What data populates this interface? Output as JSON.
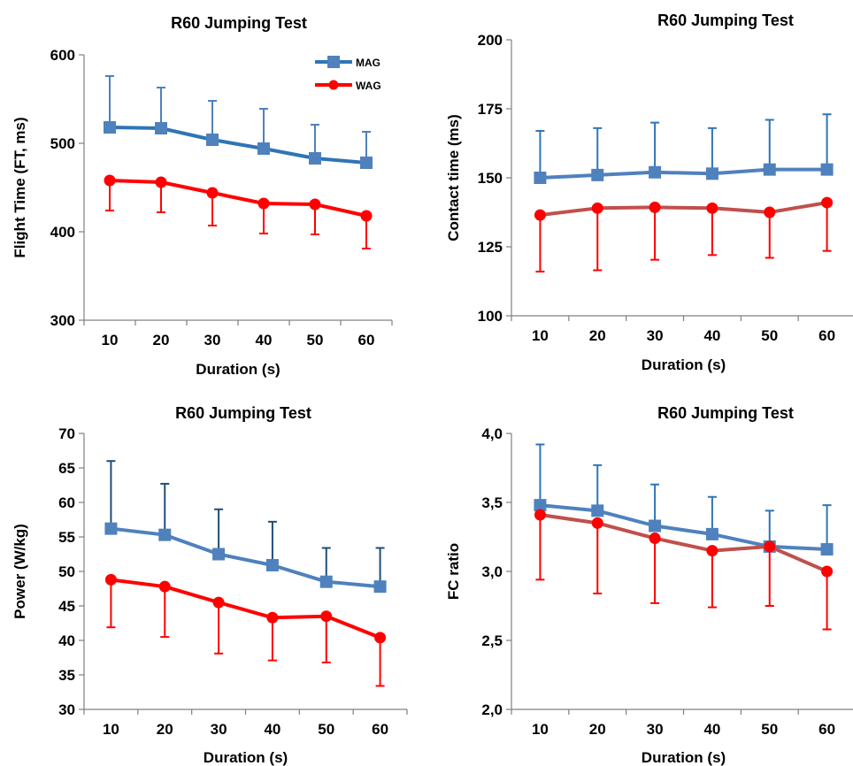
{
  "figure": {
    "legend": {
      "entries": [
        "MAG",
        "WAG"
      ]
    },
    "colors": {
      "mag": "#4f81bd",
      "mag_line": "#2e75b6",
      "wag_red": "#ff0000",
      "wag_dark": "#c0504d"
    }
  },
  "chart_data": [
    {
      "type": "line",
      "title": "R60 Jumping Test",
      "xlabel": "Duration (s)",
      "ylabel": "Flight Time (FT, ms)",
      "categories": [
        "10",
        "20",
        "30",
        "40",
        "50",
        "60"
      ],
      "ylim": [
        300,
        600
      ],
      "yticks": [
        "300",
        "400",
        "500",
        "600"
      ],
      "legend": "top-right",
      "series": [
        {
          "name": "MAG",
          "marker": "square",
          "color": "#4f81bd",
          "line_color": "#2e75b6",
          "err_color": "#4f81bd",
          "values": [
            518,
            517,
            504,
            494,
            483,
            478
          ],
          "error_up": [
            58,
            46,
            44,
            45,
            38,
            35
          ]
        },
        {
          "name": "WAG",
          "marker": "circle",
          "color": "#ff0000",
          "line_color": "#ff0000",
          "err_color": "#ff0000",
          "values": [
            458,
            456,
            444,
            432,
            431,
            418
          ],
          "error_down": [
            34,
            34,
            37,
            34,
            34,
            37
          ]
        }
      ]
    },
    {
      "type": "line",
      "title": "R60 Jumping Test",
      "xlabel": "Duration (s)",
      "ylabel": "Contact time (ms)",
      "categories": [
        "10",
        "20",
        "30",
        "40",
        "50",
        "60"
      ],
      "ylim": [
        100,
        200
      ],
      "yticks": [
        "100",
        "125",
        "150",
        "175",
        "200"
      ],
      "series": [
        {
          "marker": "square",
          "color": "#4f81bd",
          "line_color": "#4f81bd",
          "err_color": "#2e75b6",
          "values": [
            150,
            151,
            152,
            151.5,
            153,
            153
          ],
          "error_up": [
            17,
            17,
            18,
            16.5,
            18,
            20
          ]
        },
        {
          "marker": "circle",
          "color": "#ff0000",
          "line_color": "#c0504d",
          "err_color": "#ff0000",
          "values": [
            136.5,
            139,
            139.3,
            139,
            137.5,
            141
          ],
          "error_down": [
            20.5,
            22.5,
            19,
            17,
            16.5,
            17.5
          ]
        }
      ]
    },
    {
      "type": "line",
      "title": "R60 Jumping Test",
      "xlabel": "Duration (s)",
      "ylabel": "Power (W/kg)",
      "categories": [
        "10",
        "20",
        "30",
        "40",
        "50",
        "60"
      ],
      "ylim": [
        30,
        70
      ],
      "yticks": [
        "30",
        "35",
        "40",
        "45",
        "50",
        "55",
        "60",
        "65",
        "70"
      ],
      "series": [
        {
          "marker": "square",
          "color": "#4f81bd",
          "line_color": "#4f81bd",
          "err_color": "#1f4e79",
          "values": [
            56.2,
            55.3,
            52.5,
            50.9,
            48.5,
            47.8
          ],
          "error_up": [
            9.8,
            7.4,
            6.5,
            6.3,
            4.9,
            5.6
          ]
        },
        {
          "marker": "circle",
          "color": "#ff0000",
          "line_color": "#ff0000",
          "err_color": "#ff0000",
          "values": [
            48.8,
            47.8,
            45.5,
            43.3,
            43.5,
            40.4
          ],
          "error_down": [
            6.9,
            7.3,
            7.4,
            6.2,
            6.7,
            7.0
          ]
        }
      ]
    },
    {
      "type": "line",
      "title": "R60 Jumping Test",
      "xlabel": "Duration (s)",
      "ylabel": "FC ratio",
      "categories": [
        "10",
        "20",
        "30",
        "40",
        "50",
        "60"
      ],
      "ylim": [
        2.0,
        4.0
      ],
      "yticks": [
        "2,0",
        "2,5",
        "3,0",
        "3,5",
        "4,0"
      ],
      "series": [
        {
          "marker": "square",
          "color": "#4f81bd",
          "line_color": "#4f81bd",
          "err_color": "#2e75b6",
          "values": [
            3.48,
            3.44,
            3.33,
            3.27,
            3.18,
            3.16
          ],
          "error_up": [
            0.44,
            0.33,
            0.3,
            0.27,
            0.26,
            0.32
          ]
        },
        {
          "marker": "circle",
          "color": "#ff0000",
          "line_color": "#c0504d",
          "err_color": "#ff0000",
          "values": [
            3.41,
            3.35,
            3.24,
            3.15,
            3.18,
            3.0
          ],
          "error_down": [
            0.47,
            0.51,
            0.47,
            0.41,
            0.43,
            0.42
          ]
        }
      ]
    }
  ]
}
